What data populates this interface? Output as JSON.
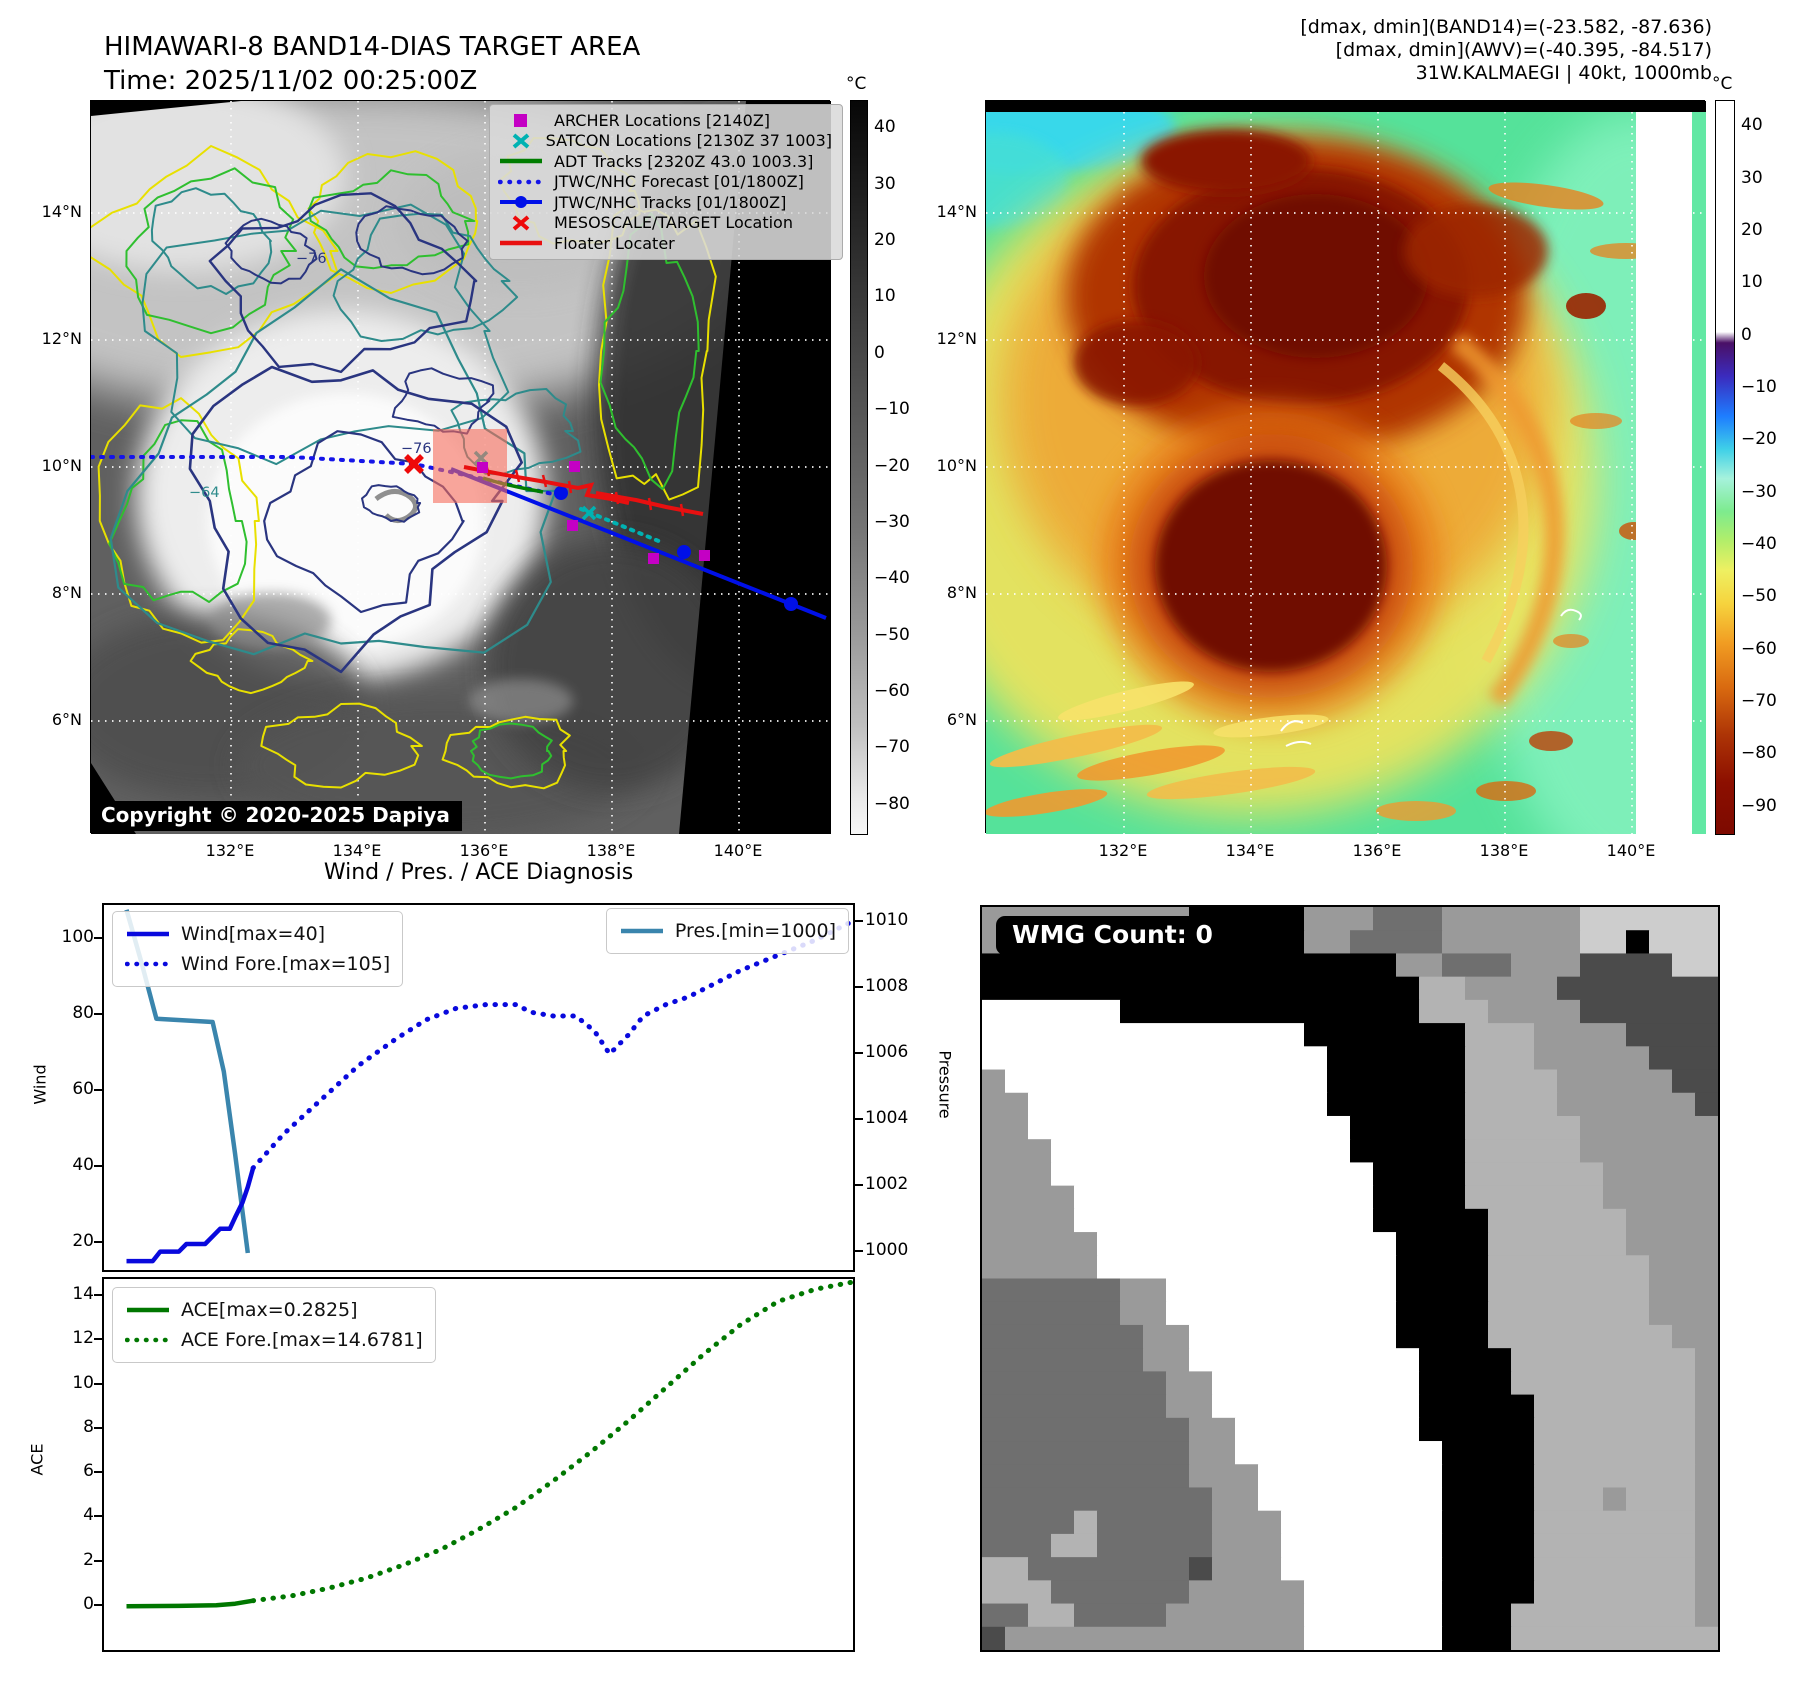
{
  "header_left": {
    "title": "HIMAWARI-8 BAND14-DIAS TARGET AREA",
    "time": "Time: 2025/11/02 00:25:00Z"
  },
  "header_right": {
    "line1": "[dmax, dmin](BAND14)=(-23.582, -87.636)",
    "line2": "[dmax, dmin](AWV)=(-40.395, -84.517)",
    "line3": "31W.KALMAEGI | 40kt, 1000mb"
  },
  "map_left": {
    "legend_items": [
      {
        "label": "ARCHER Locations [2140Z]",
        "marker": "square",
        "color": "#c400c4"
      },
      {
        "label": "SATCON Locations [2130Z 37 1003]",
        "marker": "x",
        "color": "#00b2b2"
      },
      {
        "label": "ADT Tracks [2320Z 43.0 1003.3]",
        "marker": "line",
        "color": "#007d00"
      },
      {
        "label": "JTWC/NHC Forecast [01/1800Z]",
        "marker": "dotted",
        "color": "#1515e8"
      },
      {
        "label": "JTWC/NHC Tracks [01/1800Z]",
        "marker": "line-dot",
        "color": "#0010e8"
      },
      {
        "label": "MESOSCALE/TARGET Location",
        "marker": "x",
        "color": "#ee0909"
      },
      {
        "label": "Floater Locater",
        "marker": "line",
        "color": "#e81010"
      }
    ],
    "lat_ticks": [
      "14°N",
      "12°N",
      "10°N",
      "8°N",
      "6°N"
    ],
    "lon_ticks": [
      "132°E",
      "134°E",
      "136°E",
      "138°E",
      "140°E"
    ],
    "contour_labels": [
      "−76",
      "−76",
      "−64"
    ],
    "copyright": "Copyright © 2020-2025 Dapiya",
    "colorbar": {
      "unit": "°C",
      "ticks": [
        "40",
        "30",
        "20",
        "10",
        "0",
        "−10",
        "−20",
        "−30",
        "−40",
        "−50",
        "−60",
        "−70",
        "−80"
      ]
    }
  },
  "map_right": {
    "lat_ticks": [
      "14°N",
      "12°N",
      "10°N",
      "8°N",
      "6°N"
    ],
    "lon_ticks": [
      "132°E",
      "134°E",
      "136°E",
      "138°E",
      "140°E"
    ],
    "colorbar": {
      "unit": "°C",
      "ticks": [
        "40",
        "30",
        "20",
        "10",
        "0",
        "−10",
        "−20",
        "−30",
        "−40",
        "−50",
        "−60",
        "−70",
        "−80",
        "−90"
      ]
    }
  },
  "chart_data": {
    "type": "line",
    "title": "Wind / Pres. / ACE Diagnosis",
    "x_axis": {
      "label": "",
      "range": [
        0,
        1
      ],
      "ticks_visible": false,
      "note": "time axis, no tick labels shown"
    },
    "panels": [
      {
        "name": "wind_pressure",
        "ylabel": "Wind",
        "y2label": "Pressure",
        "ylim": [
          12,
          109
        ],
        "y2lim": [
          999.4,
          1010.8
        ],
        "yticks": [
          20,
          40,
          60,
          80,
          100
        ],
        "y2ticks": [
          1000,
          1002,
          1004,
          1006,
          1008,
          1010
        ],
        "series": [
          {
            "name": "Wind[max=40]",
            "style": "solid",
            "color": "#0909dd",
            "axis": "left",
            "points": [
              [
                0.03,
                15.5
              ],
              [
                0.065,
                15.5
              ],
              [
                0.075,
                18
              ],
              [
                0.1,
                18
              ],
              [
                0.11,
                20
              ],
              [
                0.135,
                20
              ],
              [
                0.145,
                22
              ],
              [
                0.155,
                24
              ],
              [
                0.168,
                24
              ],
              [
                0.175,
                27
              ],
              [
                0.185,
                31
              ],
              [
                0.192,
                35
              ],
              [
                0.199,
                40
              ]
            ]
          },
          {
            "name": "Wind Fore.[max=105]",
            "style": "dotted",
            "color": "#0909dd",
            "axis": "left",
            "points": [
              [
                0.199,
                40
              ],
              [
                0.24,
                49
              ],
              [
                0.29,
                58
              ],
              [
                0.34,
                67
              ],
              [
                0.39,
                74
              ],
              [
                0.43,
                79
              ],
              [
                0.47,
                82
              ],
              [
                0.51,
                83
              ],
              [
                0.55,
                83
              ],
              [
                0.57,
                81
              ],
              [
                0.6,
                80
              ],
              [
                0.63,
                80
              ],
              [
                0.655,
                76
              ],
              [
                0.675,
                70
              ],
              [
                0.7,
                75
              ],
              [
                0.72,
                80
              ],
              [
                0.75,
                83
              ],
              [
                0.78,
                85
              ],
              [
                0.81,
                88
              ],
              [
                0.85,
                92
              ],
              [
                0.9,
                96
              ],
              [
                0.95,
                100
              ],
              [
                1.0,
                105
              ]
            ]
          },
          {
            "name": "Pres.[min=1000]",
            "style": "solid",
            "color": "#3a85ad",
            "axis": "right",
            "points": [
              [
                0.03,
                1010.4
              ],
              [
                0.05,
                1008.8
              ],
              [
                0.07,
                1007.1
              ],
              [
                0.145,
                1007.0
              ],
              [
                0.16,
                1005.5
              ],
              [
                0.175,
                1003.0
              ],
              [
                0.192,
                1000.0
              ]
            ]
          }
        ]
      },
      {
        "name": "ace",
        "ylabel": "ACE",
        "ylim": [
          -2.1,
          14.9
        ],
        "yticks": [
          0,
          2,
          4,
          6,
          8,
          10,
          12,
          14
        ],
        "series": [
          {
            "name": "ACE[max=0.2825]",
            "style": "solid",
            "color": "#007700",
            "axis": "left",
            "points": [
              [
                0.03,
                0.03
              ],
              [
                0.1,
                0.05
              ],
              [
                0.15,
                0.08
              ],
              [
                0.175,
                0.15
              ],
              [
                0.199,
                0.2825
              ]
            ]
          },
          {
            "name": "ACE Fore.[max=14.6781]",
            "style": "dotted",
            "color": "#007700",
            "axis": "left",
            "points": [
              [
                0.199,
                0.2825
              ],
              [
                0.25,
                0.5
              ],
              [
                0.3,
                0.85
              ],
              [
                0.35,
                1.3
              ],
              [
                0.4,
                1.9
              ],
              [
                0.45,
                2.6
              ],
              [
                0.5,
                3.5
              ],
              [
                0.55,
                4.5
              ],
              [
                0.6,
                5.7
              ],
              [
                0.65,
                7.0
              ],
              [
                0.7,
                8.4
              ],
              [
                0.75,
                9.9
              ],
              [
                0.8,
                11.4
              ],
              [
                0.85,
                12.75
              ],
              [
                0.9,
                13.8
              ],
              [
                0.95,
                14.35
              ],
              [
                1.0,
                14.6781
              ]
            ]
          }
        ]
      }
    ]
  },
  "wmg": {
    "label": "WMG Count: 0",
    "palette": {
      "B": "#000000",
      "W": "#ffffff",
      "m": "#9a9a9a",
      "l": "#b3b3b3",
      "c": "#cdcdcd",
      "d": "#6f6f6f",
      "e": "#4b4b4b"
    },
    "grid": [
      "mmmmmmmmmBBBBBmmmdddmmmmmmcccccc",
      "mBBBBBBBBBBBBBmmddddmmmmmmccBccc",
      "BBBBBBBBBBBBBBBBBBmmdddmmmeeeecc",
      "BBBBBBBBBBBBBBBBBBBllmmmmeeeeeee",
      "WWWWWWBBBBBBBBBBBBBlllmmmmeeeeee",
      "WWWWWWWWWWWWWWBBBBBBBlllmmmmeeee",
      "WWWWWWWWWWWWWWWBBBBBBlllmmmmmeee",
      "mWWWWWWWWWWWWWWBBBBBBllllmmmmmee",
      "mmWWWWWWWWWWWWWBBBBBBllllmmmmmme",
      "mmWWWWWWWWWWWWWWBBBBBlllllmmmmmm",
      "mmmWWWWWWWWWWWWWBBBBBlllllmmmmmm",
      "mmmWWWWWWWWWWWWWWBBBBllllllmmmmm",
      "mmmmWWWWWWWWWWWWWBBBBllllllmmmmm",
      "mmmmWWWWWWWWWWWWWBBBBBllllllmmmm",
      "mmmmmWWWWWWWWWWWWWBBBBllllllmmmm",
      "mmmmmWWWWWWWWWWWWWBBBBlllllllmmm",
      "ddddddmmWWWWWWWWWWBBBBlllllllmmm",
      "ddddddmmWWWWWWWWWWBBBBlllllllmmm",
      "dddddddmmWWWWWWWWWBBBBllllllllmm",
      "dddddddmmWWWWWWWWWWBBBBllllllllm",
      "ddddddddmmWWWWWWWWWBBBBllllllllm",
      "ddddddddmmWWWWWWWWWBBBBBlllllllm",
      "dddddddddmmWWWWWWWWBBBBBlllllllm",
      "dddddddddmmWWWWWWWWWBBBBlllllllm",
      "dddddddddmmmWWWWWWWWBBBBlllllllm",
      "ddddddddddmmWWWWWWWWBBBBlllmlllm",
      "ddddldddddmmmWWWWWWWBBBBlllllllm",
      "dddlldddddmmmWWWWWWWBBBBlllllllm",
      "lldddddddemmmWWWWWWWBBBBlllllllm",
      "lllddddddmmmmmWWWWWWBBBBlllllllm",
      "ddllddddmmmmmmWWWWWWBBBllllllllm",
      "emmmmmmmmmmmmmWWWWWWBBBlllllllll"
    ]
  }
}
